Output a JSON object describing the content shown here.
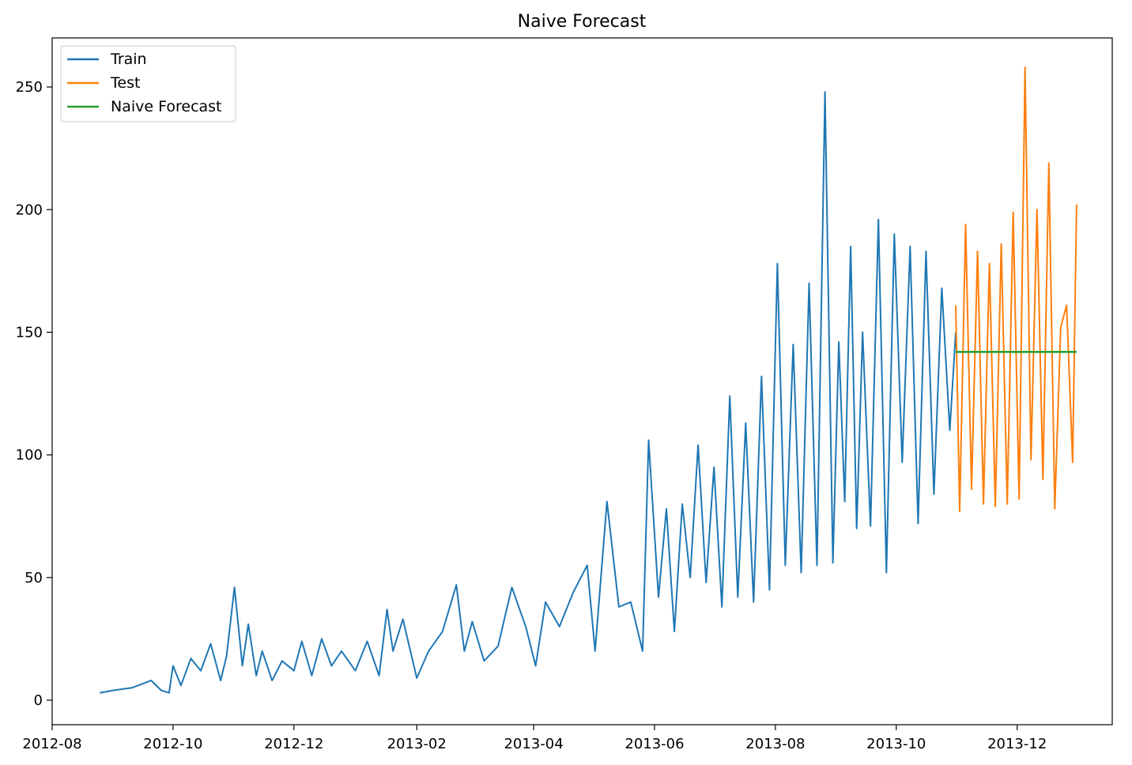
{
  "chart_data": {
    "type": "line",
    "title": "Naive Forecast",
    "xlabel": "",
    "ylabel": "",
    "x_type": "date",
    "xlim": [
      "2012-08-01",
      "2014-01-18"
    ],
    "ylim": [
      -10,
      270
    ],
    "x_ticks": [
      "2012-08",
      "2012-10",
      "2012-12",
      "2013-02",
      "2013-04",
      "2013-06",
      "2013-08",
      "2013-10",
      "2013-12"
    ],
    "x_tick_dates": [
      "2012-08-01",
      "2012-10-01",
      "2012-12-01",
      "2013-02-01",
      "2013-04-01",
      "2013-06-01",
      "2013-08-01",
      "2013-10-01",
      "2013-12-01"
    ],
    "y_ticks": [
      0,
      50,
      100,
      150,
      200,
      250
    ],
    "grid": false,
    "legend": "top-left",
    "series": [
      {
        "name": "Train",
        "color": "#1f77b4",
        "x": [
          "2012-08-25",
          "2012-09-01",
          "2012-09-10",
          "2012-09-20",
          "2012-09-25",
          "2012-09-29",
          "2012-10-01",
          "2012-10-05",
          "2012-10-10",
          "2012-10-15",
          "2012-10-20",
          "2012-10-25",
          "2012-10-28",
          "2012-11-01",
          "2012-11-05",
          "2012-11-08",
          "2012-11-12",
          "2012-11-15",
          "2012-11-20",
          "2012-11-25",
          "2012-12-01",
          "2012-12-05",
          "2012-12-10",
          "2012-12-15",
          "2012-12-20",
          "2012-12-25",
          "2013-01-01",
          "2013-01-07",
          "2013-01-13",
          "2013-01-17",
          "2013-01-20",
          "2013-01-25",
          "2013-02-01",
          "2013-02-07",
          "2013-02-14",
          "2013-02-21",
          "2013-02-25",
          "2013-03-01",
          "2013-03-07",
          "2013-03-14",
          "2013-03-21",
          "2013-03-28",
          "2013-04-02",
          "2013-04-07",
          "2013-04-14",
          "2013-04-21",
          "2013-04-28",
          "2013-05-02",
          "2013-05-08",
          "2013-05-14",
          "2013-05-20",
          "2013-05-26",
          "2013-05-29",
          "2013-06-03",
          "2013-06-07",
          "2013-06-11",
          "2013-06-15",
          "2013-06-19",
          "2013-06-23",
          "2013-06-27",
          "2013-07-01",
          "2013-07-05",
          "2013-07-09",
          "2013-07-13",
          "2013-07-17",
          "2013-07-21",
          "2013-07-25",
          "2013-07-29",
          "2013-08-02",
          "2013-08-06",
          "2013-08-10",
          "2013-08-14",
          "2013-08-18",
          "2013-08-22",
          "2013-08-26",
          "2013-08-30",
          "2013-09-02",
          "2013-09-05",
          "2013-09-08",
          "2013-09-11",
          "2013-09-14",
          "2013-09-18",
          "2013-09-22",
          "2013-09-26",
          "2013-09-30",
          "2013-10-04",
          "2013-10-08",
          "2013-10-12",
          "2013-10-16",
          "2013-10-20",
          "2013-10-24",
          "2013-10-28",
          "2013-10-31"
        ],
        "y": [
          3,
          4,
          5,
          8,
          4,
          3,
          14,
          6,
          17,
          12,
          23,
          8,
          18,
          46,
          14,
          31,
          10,
          20,
          8,
          16,
          12,
          24,
          10,
          25,
          14,
          20,
          12,
          24,
          10,
          37,
          20,
          33,
          9,
          20,
          28,
          47,
          20,
          32,
          16,
          22,
          46,
          30,
          14,
          40,
          30,
          44,
          55,
          20,
          81,
          38,
          40,
          20,
          106,
          42,
          78,
          28,
          80,
          50,
          104,
          48,
          95,
          38,
          124,
          42,
          113,
          40,
          132,
          45,
          178,
          55,
          145,
          52,
          170,
          55,
          248,
          56,
          146,
          81,
          185,
          70,
          150,
          71,
          196,
          52,
          190,
          97,
          185,
          72,
          183,
          84,
          168,
          110,
          150
        ]
      },
      {
        "name": "Test",
        "color": "#ff7f0e",
        "x": [
          "2013-10-31",
          "2013-11-02",
          "2013-11-05",
          "2013-11-08",
          "2013-11-11",
          "2013-11-14",
          "2013-11-17",
          "2013-11-20",
          "2013-11-23",
          "2013-11-26",
          "2013-11-29",
          "2013-12-02",
          "2013-12-05",
          "2013-12-08",
          "2013-12-11",
          "2013-12-14",
          "2013-12-17",
          "2013-12-20",
          "2013-12-23",
          "2013-12-26",
          "2013-12-29",
          "2013-12-31"
        ],
        "y": [
          161,
          77,
          194,
          86,
          183,
          80,
          178,
          79,
          186,
          80,
          199,
          82,
          258,
          98,
          200,
          90,
          219,
          78,
          152,
          161,
          97,
          202
        ]
      },
      {
        "name": "Naive Forecast",
        "color": "#2ca02c",
        "x": [
          "2013-10-31",
          "2013-12-31"
        ],
        "y": [
          142,
          142
        ]
      }
    ]
  }
}
